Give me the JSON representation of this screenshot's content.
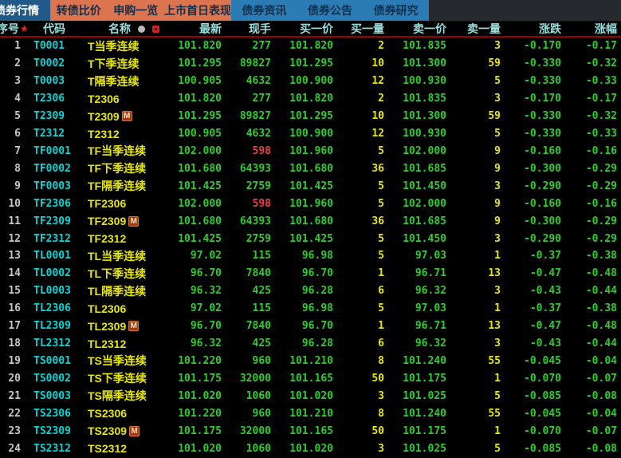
{
  "tabs": {
    "active": {
      "label": "债券行情"
    },
    "orange": [
      {
        "label": "转债比价"
      },
      {
        "label": "申购一览"
      },
      {
        "label": "上市首日表现"
      }
    ],
    "blue": [
      {
        "label": "债券资讯"
      },
      {
        "label": "债券公告"
      },
      {
        "label": "债券研究"
      }
    ]
  },
  "table": {
    "columns": {
      "no": "序号",
      "code": "代码",
      "name": "名称",
      "last": "最新",
      "vol": "现手",
      "bid": "买一价",
      "bid_qty": "买一量",
      "ask": "卖一价",
      "ask_qty": "卖一量",
      "chg": "涨跌",
      "pct": "涨幅"
    },
    "sort_star": "★",
    "m_badge": "M",
    "rows": [
      {
        "no": "1",
        "code": "T0001",
        "name": "T当季连续",
        "m": false,
        "last": "101.820",
        "vol": "277",
        "vol_color": "green",
        "bid": "101.820",
        "bid_qty": "2",
        "ask": "101.835",
        "ask_qty": "3",
        "chg": "-0.170",
        "pct": "-0.17"
      },
      {
        "no": "2",
        "code": "T0002",
        "name": "T下季连续",
        "m": false,
        "last": "101.295",
        "vol": "89827",
        "vol_color": "green",
        "bid": "101.295",
        "bid_qty": "10",
        "ask": "101.300",
        "ask_qty": "59",
        "chg": "-0.330",
        "pct": "-0.32"
      },
      {
        "no": "3",
        "code": "T0003",
        "name": "T隔季连续",
        "m": false,
        "last": "100.905",
        "vol": "4632",
        "vol_color": "green",
        "bid": "100.900",
        "bid_qty": "12",
        "ask": "100.930",
        "ask_qty": "5",
        "chg": "-0.330",
        "pct": "-0.33"
      },
      {
        "no": "4",
        "code": "T2306",
        "name": "T2306",
        "m": false,
        "last": "101.820",
        "vol": "277",
        "vol_color": "green",
        "bid": "101.820",
        "bid_qty": "2",
        "ask": "101.835",
        "ask_qty": "3",
        "chg": "-0.170",
        "pct": "-0.17"
      },
      {
        "no": "5",
        "code": "T2309",
        "name": "T2309",
        "m": true,
        "last": "101.295",
        "vol": "89827",
        "vol_color": "green",
        "bid": "101.295",
        "bid_qty": "10",
        "ask": "101.300",
        "ask_qty": "59",
        "chg": "-0.330",
        "pct": "-0.32"
      },
      {
        "no": "6",
        "code": "T2312",
        "name": "T2312",
        "m": false,
        "last": "100.905",
        "vol": "4632",
        "vol_color": "green",
        "bid": "100.900",
        "bid_qty": "12",
        "ask": "100.930",
        "ask_qty": "5",
        "chg": "-0.330",
        "pct": "-0.33"
      },
      {
        "no": "7",
        "code": "TF0001",
        "name": "TF当季连续",
        "m": false,
        "last": "102.000",
        "vol": "598",
        "vol_color": "red",
        "bid": "101.960",
        "bid_qty": "5",
        "ask": "102.000",
        "ask_qty": "9",
        "chg": "-0.160",
        "pct": "-0.16"
      },
      {
        "no": "8",
        "code": "TF0002",
        "name": "TF下季连续",
        "m": false,
        "last": "101.680",
        "vol": "64393",
        "vol_color": "green",
        "bid": "101.680",
        "bid_qty": "36",
        "ask": "101.685",
        "ask_qty": "9",
        "chg": "-0.300",
        "pct": "-0.29"
      },
      {
        "no": "9",
        "code": "TF0003",
        "name": "TF隔季连续",
        "m": false,
        "last": "101.425",
        "vol": "2759",
        "vol_color": "green",
        "bid": "101.425",
        "bid_qty": "5",
        "ask": "101.450",
        "ask_qty": "3",
        "chg": "-0.290",
        "pct": "-0.29"
      },
      {
        "no": "10",
        "code": "TF2306",
        "name": "TF2306",
        "m": false,
        "last": "102.000",
        "vol": "598",
        "vol_color": "red",
        "bid": "101.960",
        "bid_qty": "5",
        "ask": "102.000",
        "ask_qty": "9",
        "chg": "-0.160",
        "pct": "-0.16"
      },
      {
        "no": "11",
        "code": "TF2309",
        "name": "TF2309",
        "m": true,
        "last": "101.680",
        "vol": "64393",
        "vol_color": "green",
        "bid": "101.680",
        "bid_qty": "36",
        "ask": "101.685",
        "ask_qty": "9",
        "chg": "-0.300",
        "pct": "-0.29"
      },
      {
        "no": "12",
        "code": "TF2312",
        "name": "TF2312",
        "m": false,
        "last": "101.425",
        "vol": "2759",
        "vol_color": "green",
        "bid": "101.425",
        "bid_qty": "5",
        "ask": "101.450",
        "ask_qty": "3",
        "chg": "-0.290",
        "pct": "-0.29"
      },
      {
        "no": "13",
        "code": "TL0001",
        "name": "TL当季连续",
        "m": false,
        "last": "97.02",
        "vol": "115",
        "vol_color": "green",
        "bid": "96.98",
        "bid_qty": "5",
        "ask": "97.03",
        "ask_qty": "1",
        "chg": "-0.37",
        "pct": "-0.38"
      },
      {
        "no": "14",
        "code": "TL0002",
        "name": "TL下季连续",
        "m": false,
        "last": "96.70",
        "vol": "7840",
        "vol_color": "green",
        "bid": "96.70",
        "bid_qty": "1",
        "ask": "96.71",
        "ask_qty": "13",
        "chg": "-0.47",
        "pct": "-0.48"
      },
      {
        "no": "15",
        "code": "TL0003",
        "name": "TL隔季连续",
        "m": false,
        "last": "96.32",
        "vol": "425",
        "vol_color": "green",
        "bid": "96.28",
        "bid_qty": "6",
        "ask": "96.32",
        "ask_qty": "3",
        "chg": "-0.43",
        "pct": "-0.44"
      },
      {
        "no": "16",
        "code": "TL2306",
        "name": "TL2306",
        "m": false,
        "last": "97.02",
        "vol": "115",
        "vol_color": "green",
        "bid": "96.98",
        "bid_qty": "5",
        "ask": "97.03",
        "ask_qty": "1",
        "chg": "-0.37",
        "pct": "-0.38"
      },
      {
        "no": "17",
        "code": "TL2309",
        "name": "TL2309",
        "m": true,
        "last": "96.70",
        "vol": "7840",
        "vol_color": "green",
        "bid": "96.70",
        "bid_qty": "1",
        "ask": "96.71",
        "ask_qty": "13",
        "chg": "-0.47",
        "pct": "-0.48"
      },
      {
        "no": "18",
        "code": "TL2312",
        "name": "TL2312",
        "m": false,
        "last": "96.32",
        "vol": "425",
        "vol_color": "green",
        "bid": "96.28",
        "bid_qty": "6",
        "ask": "96.32",
        "ask_qty": "3",
        "chg": "-0.43",
        "pct": "-0.44"
      },
      {
        "no": "19",
        "code": "TS0001",
        "name": "TS当季连续",
        "m": false,
        "last": "101.220",
        "vol": "960",
        "vol_color": "green",
        "bid": "101.210",
        "bid_qty": "8",
        "ask": "101.240",
        "ask_qty": "55",
        "chg": "-0.045",
        "pct": "-0.04"
      },
      {
        "no": "20",
        "code": "TS0002",
        "name": "TS下季连续",
        "m": false,
        "last": "101.175",
        "vol": "32000",
        "vol_color": "green",
        "bid": "101.165",
        "bid_qty": "50",
        "ask": "101.175",
        "ask_qty": "1",
        "chg": "-0.070",
        "pct": "-0.07"
      },
      {
        "no": "21",
        "code": "TS0003",
        "name": "TS隔季连续",
        "m": false,
        "last": "101.020",
        "vol": "1060",
        "vol_color": "green",
        "bid": "101.020",
        "bid_qty": "3",
        "ask": "101.025",
        "ask_qty": "5",
        "chg": "-0.085",
        "pct": "-0.08"
      },
      {
        "no": "22",
        "code": "TS2306",
        "name": "TS2306",
        "m": false,
        "last": "101.220",
        "vol": "960",
        "vol_color": "green",
        "bid": "101.210",
        "bid_qty": "8",
        "ask": "101.240",
        "ask_qty": "55",
        "chg": "-0.045",
        "pct": "-0.04"
      },
      {
        "no": "23",
        "code": "TS2309",
        "name": "TS2309",
        "m": true,
        "last": "101.175",
        "vol": "32000",
        "vol_color": "green",
        "bid": "101.165",
        "bid_qty": "50",
        "ask": "101.175",
        "ask_qty": "1",
        "chg": "-0.070",
        "pct": "-0.07"
      },
      {
        "no": "24",
        "code": "TS2312",
        "name": "TS2312",
        "m": false,
        "last": "101.020",
        "vol": "1060",
        "vol_color": "green",
        "bid": "101.020",
        "bid_qty": "3",
        "ask": "101.025",
        "ask_qty": "5",
        "chg": "-0.085",
        "pct": "-0.08"
      }
    ]
  },
  "colors": {
    "up_red": "#e64040",
    "down_green": "#2ecc2e",
    "code_cyan": "#00d7d7",
    "name_yellow": "#e8e800",
    "qty_yellow": "#e8e800",
    "header_cyan": "#9adede",
    "tab_orange": "#dd7450",
    "tab_blue": "#2b7cb5",
    "active_tab_blue": "#215a88",
    "tab_text_dark": "#11304e",
    "index_gray": "#c8c8c8",
    "divider_red": "#9a0000"
  }
}
